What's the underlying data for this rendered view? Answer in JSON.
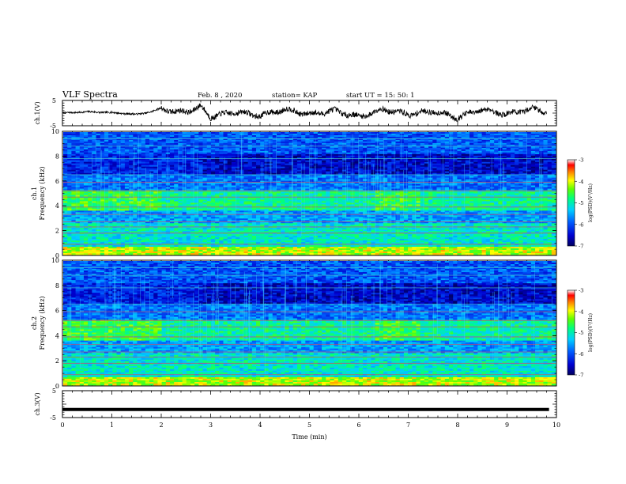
{
  "header": {
    "title": "VLF Spectra",
    "date": "Feb. 8 , 2020",
    "station": "station= KAP",
    "start": "start  UT =   15: 50: 1"
  },
  "chart_data": [
    {
      "type": "line",
      "panel": "ch1-waveform",
      "ylabel": "ch.1(V)",
      "ylim": [
        -5,
        5
      ],
      "yticks": [
        "5",
        "-5"
      ],
      "xlim": [
        0,
        10
      ],
      "x": [
        0,
        0.5,
        1.0,
        1.5,
        1.8,
        2.0,
        2.3,
        2.6,
        2.8,
        3.0,
        3.5,
        4.0,
        4.5,
        5.0,
        5.5,
        6.0,
        6.5,
        7.0,
        7.5,
        8.0,
        8.5,
        9.0,
        9.5,
        9.8
      ],
      "values": [
        0,
        0.5,
        0.2,
        -0.5,
        0.5,
        2.0,
        0.3,
        1.0,
        2.5,
        -1.5,
        0.5,
        -1.0,
        1.5,
        -0.5,
        1.0,
        -1.5,
        1.5,
        -0.5,
        0.8,
        -1.8,
        1.5,
        -0.5,
        1.8,
        0.5
      ]
    },
    {
      "type": "heatmap",
      "panel": "ch1-spectrogram",
      "ylabel": "ch.1\nFrequency (kHz)",
      "xlim": [
        0,
        10
      ],
      "ylim": [
        0,
        10
      ],
      "yticks": [
        "0",
        "2",
        "4",
        "6",
        "8",
        "10"
      ],
      "colorbar_label": "log(PSD)(V²/Hz)",
      "colorbar_range": [
        -7,
        -3
      ],
      "colorbar_ticks": [
        "-3",
        "-4",
        "-5",
        "-6",
        "-7"
      ]
    },
    {
      "type": "heatmap",
      "panel": "ch2-spectrogram",
      "ylabel": "ch.2\nFrequency (kHz)",
      "xlim": [
        0,
        10
      ],
      "ylim": [
        0,
        10
      ],
      "yticks": [
        "0",
        "2",
        "4",
        "6",
        "8",
        "10"
      ],
      "colorbar_label": "log(PSD)(V²/Hz)",
      "colorbar_range": [
        -7,
        -3
      ],
      "colorbar_ticks": [
        "-3",
        "-4",
        "-5",
        "-6",
        "-7"
      ]
    },
    {
      "type": "line",
      "panel": "ch3-waveform",
      "ylabel": "ch.3(V)",
      "ylim": [
        -5,
        5
      ],
      "yticks": [
        "5",
        "-5"
      ],
      "xlim": [
        0,
        10
      ],
      "x": [
        0,
        9.85
      ],
      "values": [
        -2,
        -2
      ],
      "xlabel": "Time  (min)",
      "xticks": [
        "0",
        "1",
        "2",
        "3",
        "4",
        "5",
        "6",
        "7",
        "8",
        "9",
        "10"
      ]
    }
  ]
}
